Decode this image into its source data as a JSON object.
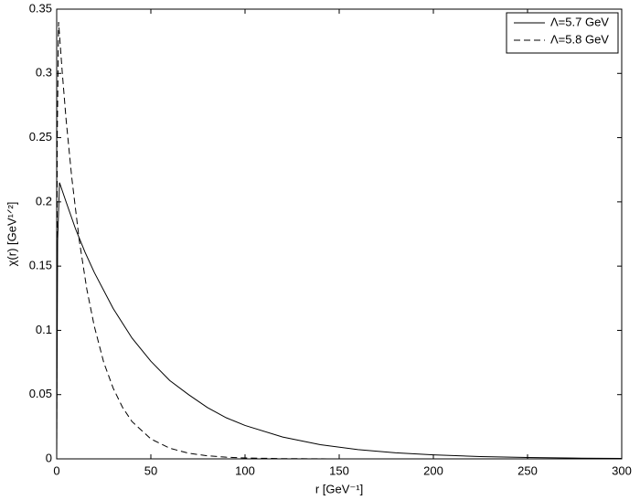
{
  "chart_data": {
    "type": "line",
    "xlabel": "r [GeV⁻¹]",
    "ylabel": "χ(r) [GeV¹ᐟ²]",
    "xlim": [
      0,
      300
    ],
    "xticks": [
      0,
      50,
      100,
      150,
      200,
      250,
      300
    ],
    "ylim": [
      0,
      0.35
    ],
    "yticks": [
      0,
      0.05,
      0.1,
      0.15,
      0.2,
      0.25,
      0.3,
      0.35
    ],
    "grid": false,
    "legend": "upper right",
    "series": [
      {
        "name": "Λ=5.7 GeV",
        "color": "#000000",
        "dash": "solid",
        "x": [
          0,
          0.5,
          1.5,
          5,
          10,
          15,
          20,
          30,
          40,
          50,
          60,
          70,
          80,
          90,
          100,
          120,
          140,
          160,
          180,
          200,
          225,
          250,
          275,
          300
        ],
        "values": [
          0,
          0.17,
          0.215,
          0.2,
          0.179,
          0.161,
          0.145,
          0.117,
          0.094,
          0.076,
          0.061,
          0.05,
          0.04,
          0.032,
          0.026,
          0.017,
          0.011,
          0.0072,
          0.0047,
          0.0031,
          0.0018,
          0.0011,
          0.0006,
          0.0004
        ]
      },
      {
        "name": "Λ=5.8 GeV",
        "color": "#000000",
        "dash": "dashed",
        "x": [
          0,
          0.3,
          1,
          3,
          5,
          8,
          12,
          16,
          20,
          25,
          30,
          35,
          40,
          50,
          60,
          70,
          80,
          90,
          100,
          120,
          150,
          200,
          250,
          300
        ],
        "values": [
          0,
          0.25,
          0.34,
          0.3,
          0.264,
          0.219,
          0.17,
          0.132,
          0.103,
          0.075,
          0.055,
          0.04,
          0.029,
          0.0155,
          0.0083,
          0.0044,
          0.0024,
          0.0013,
          0.0007,
          0.0002,
          0,
          0,
          0,
          0
        ]
      }
    ]
  }
}
